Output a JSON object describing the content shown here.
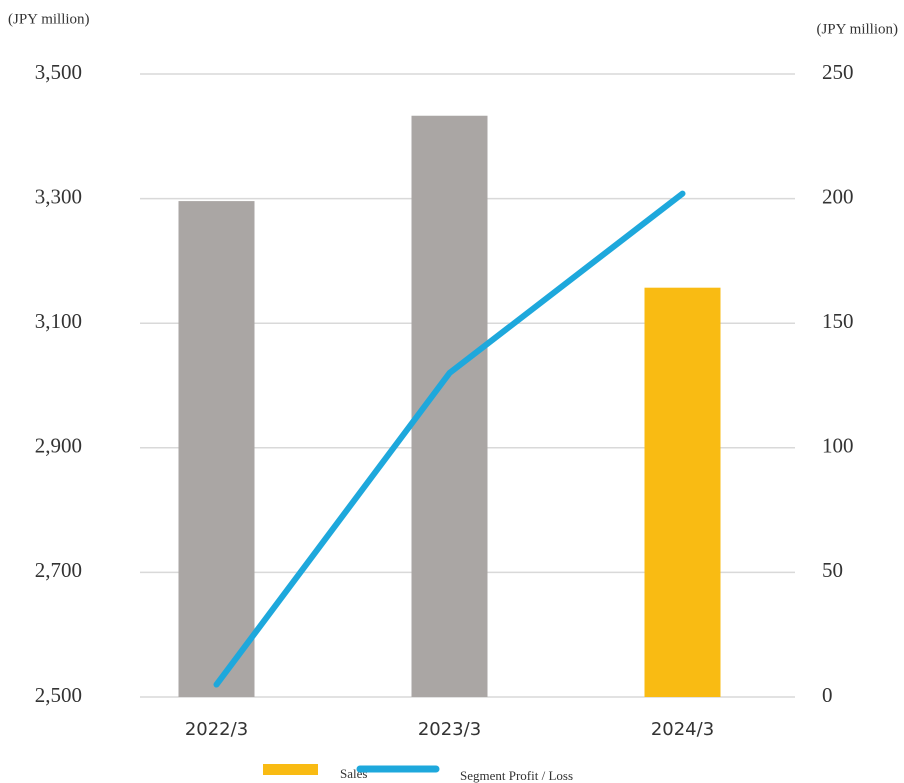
{
  "chart_data": {
    "type": "bar",
    "y_label": "(JPY million)",
    "y2_label": "(JPY million)",
    "categories": [
      "2022/3",
      "2023/3",
      "2024/3"
    ],
    "series": [
      {
        "name": "Sales",
        "type": "bar",
        "color": "#f9bb13",
        "colors": [
          "#aaa6a4",
          "#aaa6a4",
          "#f9bb13"
        ],
        "values": [
          3296,
          3433,
          3157
        ]
      },
      {
        "name": "Segment Profit / Loss",
        "type": "line",
        "axis": "y2",
        "color": "#1ea8dc",
        "values": [
          5,
          130,
          202
        ]
      }
    ],
    "ylim": [
      2500,
      3500
    ],
    "yticks": [
      {
        "value": 2500,
        "label": "2,500"
      },
      {
        "value": 2700,
        "label": "2,700"
      },
      {
        "value": 2900,
        "label": "2,900"
      },
      {
        "value": 3100,
        "label": "3,100"
      },
      {
        "value": 3300,
        "label": "3,300"
      },
      {
        "value": 3500,
        "label": "3,500"
      }
    ],
    "y2lim": [
      0,
      250
    ],
    "y2ticks": [
      0,
      50,
      100,
      150,
      200,
      250
    ],
    "grid": true,
    "legend": "bottom"
  }
}
